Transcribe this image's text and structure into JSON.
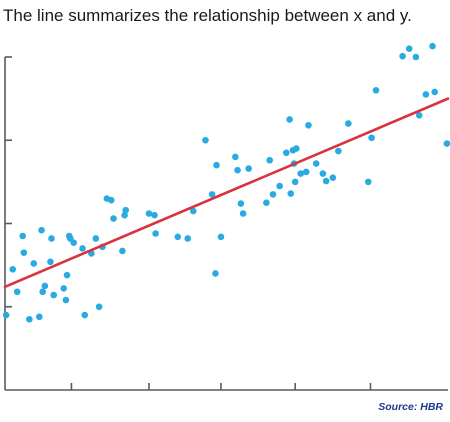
{
  "chart_data": {
    "type": "scatter",
    "title": "The line summarizes the relationship between x and y.",
    "source": "Source: HBR",
    "xlim": [
      0,
      20
    ],
    "ylim": [
      0,
      4
    ],
    "x_ticks": [
      3,
      6.5,
      9.75,
      13.1,
      16.5
    ],
    "y_ticks": [
      1,
      2,
      3,
      4
    ],
    "xlabel": "",
    "ylabel": "",
    "colors": {
      "points": "#29abe2",
      "trendline": "#d9333f",
      "axis": "#5a5a5a"
    },
    "trendline": {
      "x": [
        0,
        20
      ],
      "y": [
        1.24,
        3.5
      ]
    },
    "series": [
      {
        "x": [
          0.05,
          0.35,
          0.55,
          0.8,
          0.85,
          1.1,
          1.3,
          1.55,
          1.65,
          1.7,
          1.8,
          2.05,
          2.1,
          2.2,
          2.65,
          2.75,
          2.8,
          2.9,
          2.95,
          3.1,
          3.5,
          3.6,
          3.9,
          4.1,
          4.25,
          4.4,
          4.6,
          4.8,
          4.9,
          5.3,
          5.4,
          5.45,
          6.5,
          6.75,
          6.8,
          7.8,
          8.25,
          8.5,
          9.05,
          9.35,
          9.5,
          9.55,
          9.75,
          10.4,
          10.5,
          10.65,
          10.75,
          11.0,
          11.8,
          11.95,
          12.1,
          12.4,
          12.7,
          12.85,
          12.9,
          13.0,
          13.05,
          13.1,
          13.15,
          13.35,
          13.6,
          13.7,
          14.05,
          14.35,
          14.5,
          14.8,
          15.05,
          15.5,
          16.4,
          16.55,
          16.75,
          17.95,
          18.25,
          18.55,
          18.7,
          19.0,
          19.3,
          19.4,
          19.95
        ],
        "y": [
          0.9,
          1.45,
          1.18,
          1.85,
          1.65,
          0.85,
          1.52,
          0.88,
          1.92,
          1.18,
          1.25,
          1.54,
          1.82,
          1.14,
          1.22,
          1.08,
          1.38,
          1.85,
          1.82,
          1.77,
          1.7,
          0.9,
          1.64,
          1.82,
          1.0,
          1.72,
          2.3,
          2.28,
          2.06,
          1.67,
          2.1,
          2.16,
          2.12,
          2.1,
          1.88,
          1.84,
          1.82,
          2.15,
          3.0,
          2.35,
          1.4,
          2.7,
          1.84,
          2.8,
          2.64,
          2.24,
          2.12,
          2.66,
          2.25,
          2.76,
          2.35,
          2.45,
          2.85,
          3.25,
          2.36,
          2.88,
          2.72,
          2.5,
          2.9,
          2.6,
          2.62,
          3.18,
          2.72,
          2.6,
          2.51,
          2.55,
          2.87,
          3.2,
          2.5,
          3.03,
          3.6,
          4.01,
          4.1,
          4.0,
          3.3,
          3.55,
          4.13,
          3.58,
          2.96
        ]
      }
    ]
  }
}
